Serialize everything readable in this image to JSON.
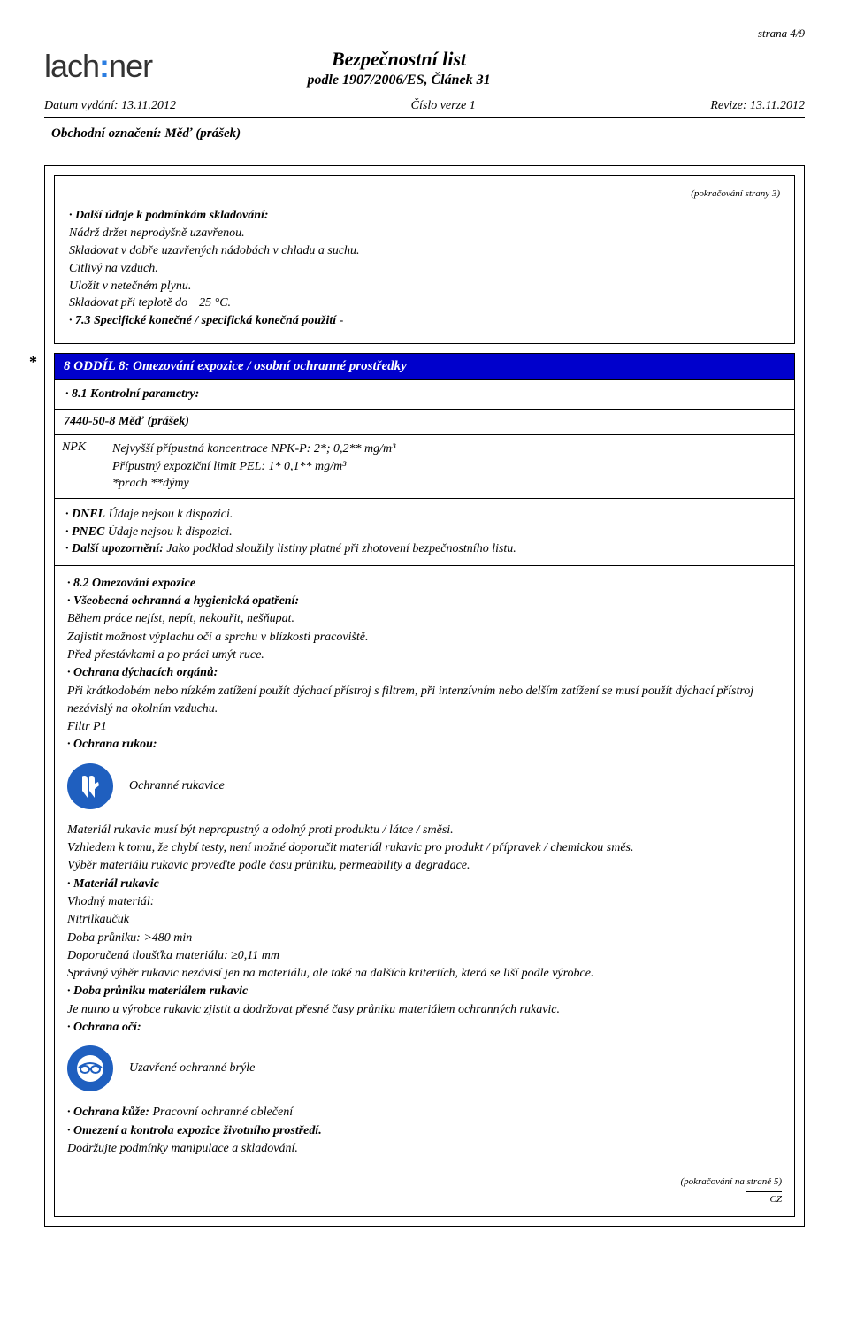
{
  "page_number": "strana 4/9",
  "logo": {
    "part1": "lach",
    "colon": ":",
    "part2": "ner"
  },
  "header": {
    "title": "Bezpečnostní list",
    "subtitle": "podle 1907/2006/ES, Článek 31"
  },
  "meta": {
    "issue_date_label": "Datum vydání: 13.11.2012",
    "version_label": "Číslo verze 1",
    "revision_label": "Revize: 13.11.2012"
  },
  "product_name_line": "Obchodní označení: Měď (prášek)",
  "cont_prev": "(pokračování strany 3)",
  "section7": {
    "items": [
      {
        "bold": "· Další údaje k podmínkám skladování:",
        "plain": ""
      },
      {
        "bold": "",
        "plain": "Nádrž držet neprodyšně uzavřenou."
      },
      {
        "bold": "",
        "plain": "Skladovat v dobře uzavřených nádobách v chladu a suchu."
      },
      {
        "bold": "",
        "plain": "Citlivý na vzduch."
      },
      {
        "bold": "",
        "plain": "Uložit v netečném plynu."
      },
      {
        "bold": "",
        "plain": "Skladovat při teplotě do +25 °C."
      },
      {
        "bold": "· 7.3 Specifické konečné / specifická konečná použití",
        "plain": " -"
      }
    ]
  },
  "section8": {
    "star": "*",
    "title": "8 ODDÍL 8: Omezování expozice / osobní ochranné prostředky",
    "param_heading": "· 8.1 Kontrolní parametry:",
    "cas_line": "7440-50-8 Měď (prášek)",
    "npk_label": "NPK",
    "npk_lines": [
      "Nejvyšší přípustná koncentrace NPK-P: 2*; 0,2** mg/m³",
      "Přípustný expoziční limit PEL: 1* 0,1** mg/m³",
      "*prach **dýmy"
    ],
    "dnel_lines": [
      {
        "b": "· DNEL",
        "t": " Údaje nejsou k dispozici."
      },
      {
        "b": "· PNEC",
        "t": " Údaje nejsou k dispozici."
      },
      {
        "b": "· Další upozornění:",
        "t": " Jako podklad sloužily listiny platné při zhotovení bezpečnostního listu."
      }
    ],
    "body1": [
      {
        "b": "· 8.2 Omezování expozice",
        "t": ""
      },
      {
        "b": "· Všeobecná ochranná a hygienická opatření:",
        "t": ""
      },
      {
        "b": "",
        "t": "Během práce nejíst, nepít, nekouřit, nešňupat."
      },
      {
        "b": "",
        "t": "Zajistit možnost výplachu očí a sprchu v blízkosti pracoviště."
      },
      {
        "b": "",
        "t": "Před přestávkami a po práci umýt ruce."
      },
      {
        "b": "· Ochrana dýchacích orgánů:",
        "t": ""
      },
      {
        "b": "",
        "t": "Při krátkodobém nebo nízkém zatížení použít dýchací přístroj s filtrem, při intenzívním nebo delším zatížení se musí použít dýchací přístroj nezávislý na okolním vzduchu."
      },
      {
        "b": "",
        "t": "Filtr P1"
      },
      {
        "b": "· Ochrana rukou:",
        "t": ""
      }
    ],
    "gloves_icon_label": "Ochranné rukavice",
    "body2": [
      {
        "b": "",
        "t": "Materiál rukavic musí být nepropustný a odolný proti produktu / látce / směsi."
      },
      {
        "b": "",
        "t": "Vzhledem k tomu, že chybí testy, není možné doporučit materiál rukavic pro produkt / přípravek / chemickou směs."
      },
      {
        "b": "",
        "t": "Výběr materiálu rukavic proveďte podle času průniku, permeability a degradace."
      },
      {
        "b": "· Materiál rukavic",
        "t": ""
      },
      {
        "b": "",
        "t": "Vhodný materiál:"
      },
      {
        "b": "",
        "t": "Nitrilkaučuk"
      },
      {
        "b": "",
        "t": "Doba průniku:  >480 min"
      },
      {
        "b": "",
        "t": "Doporučená tloušťka materiálu: ≥0,11 mm"
      },
      {
        "b": "",
        "t": "Správný výběr rukavic nezávisí jen na materiálu, ale také na dalších kriteriích, která se liší podle výrobce."
      },
      {
        "b": "· Doba průniku materiálem rukavic",
        "t": ""
      },
      {
        "b": "",
        "t": "Je nutno u výrobce rukavic zjistit a dodržovat přesné časy průniku materiálem ochranných rukavic."
      },
      {
        "b": "· Ochrana očí:",
        "t": ""
      }
    ],
    "goggles_icon_label": "Uzavřené ochranné brýle",
    "body3": [
      {
        "b": "· Ochrana kůže:",
        "t": " Pracovní ochranné oblečení"
      },
      {
        "b": "· Omezení a kontrola expozice životního prostředí.",
        "t": ""
      },
      {
        "b": "",
        "t": "Dodržujte podmínky manipulace a skladování."
      }
    ]
  },
  "cont_next": "(pokračování na straně 5)",
  "cz": "CZ"
}
